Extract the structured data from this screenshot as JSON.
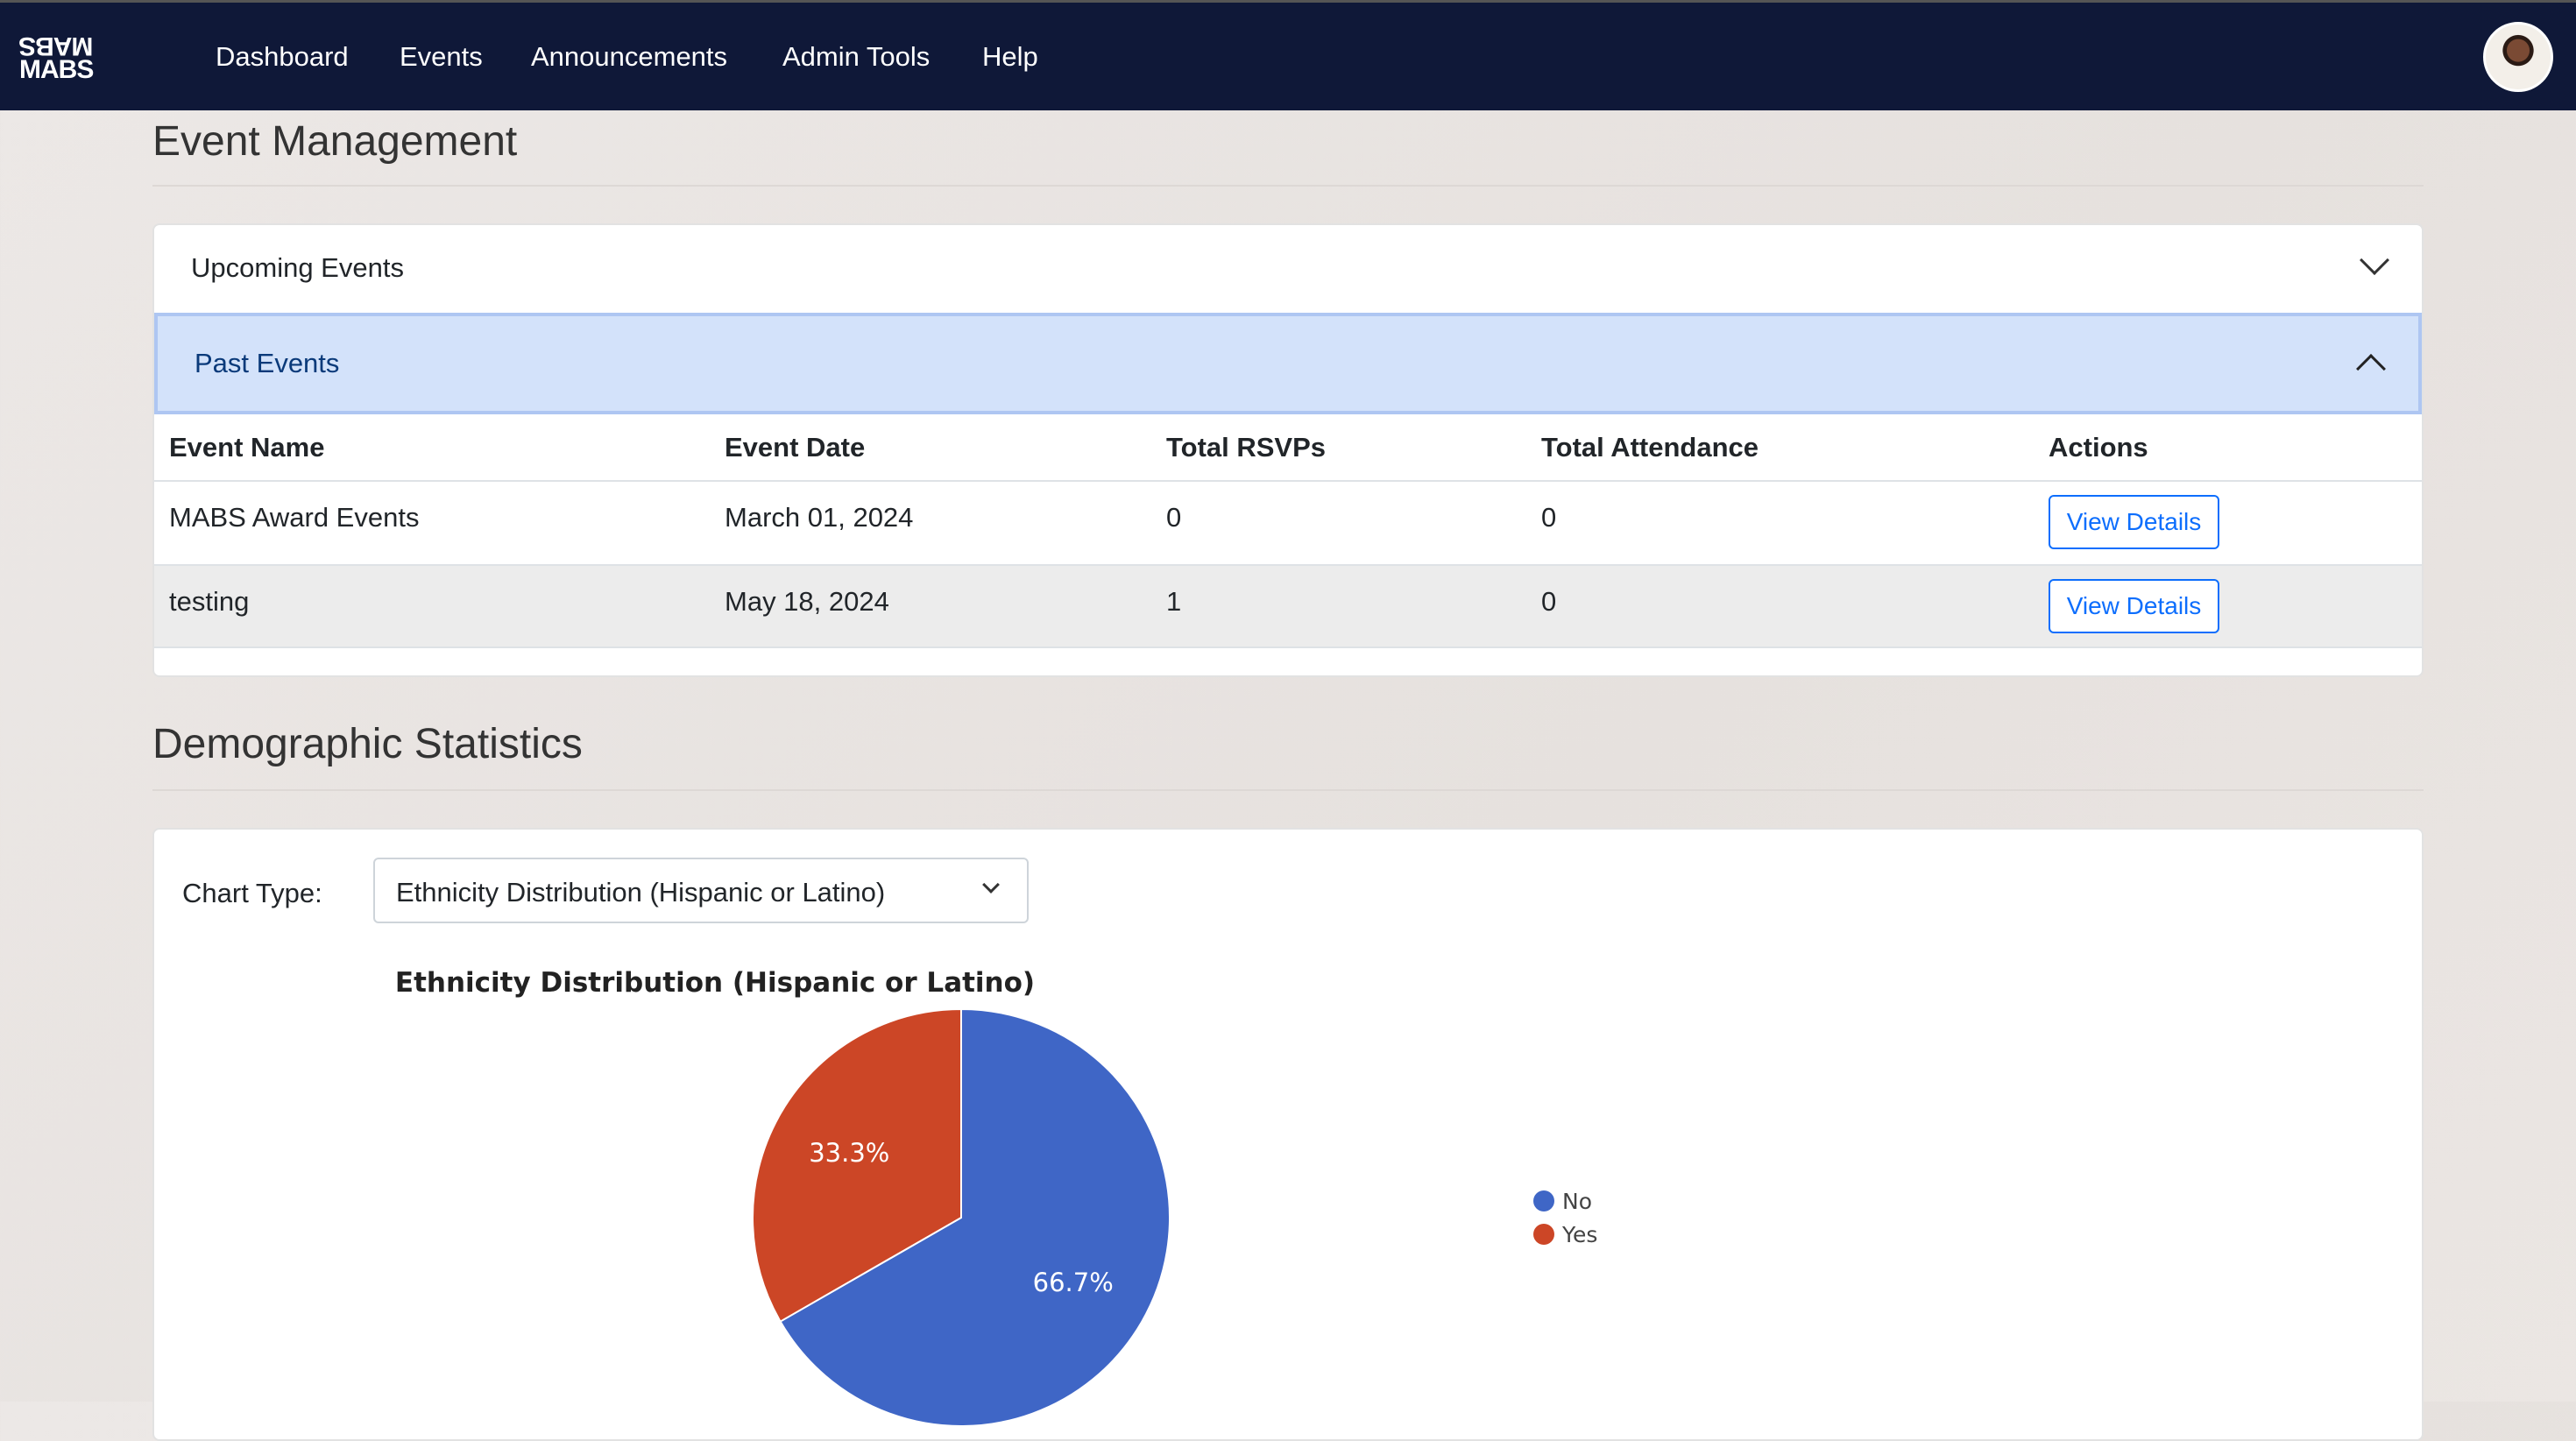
{
  "nav": {
    "logo_top": "MABS",
    "logo_bottom": "MABS",
    "links": [
      "Dashboard",
      "Events",
      "Announcements",
      "Admin Tools",
      "Help"
    ]
  },
  "page": {
    "title": "Event Management",
    "demographics_title": "Demographic Statistics"
  },
  "accordion": {
    "upcoming": "Upcoming Events",
    "past": "Past Events"
  },
  "table": {
    "headers": [
      "Event Name",
      "Event Date",
      "Total RSVPs",
      "Total Attendance",
      "Actions"
    ],
    "rows": [
      [
        "MABS Award Events",
        "March 01, 2024",
        "0",
        "0",
        "View Details"
      ],
      [
        "testing",
        "May 18, 2024",
        "1",
        "0",
        "View Details"
      ]
    ]
  },
  "chart_controls": {
    "label": "Chart Type:",
    "selected": "Ethnicity Distribution (Hispanic or Latino)"
  },
  "chart_data": {
    "type": "pie",
    "title": "Ethnicity Distribution (Hispanic or Latino)",
    "categories": [
      "No",
      "Yes"
    ],
    "values": [
      66.7,
      33.3
    ],
    "labels": [
      "66.7%",
      "33.3%"
    ],
    "colors": [
      "#3f66c6",
      "#cc4626"
    ],
    "legend": "right"
  }
}
